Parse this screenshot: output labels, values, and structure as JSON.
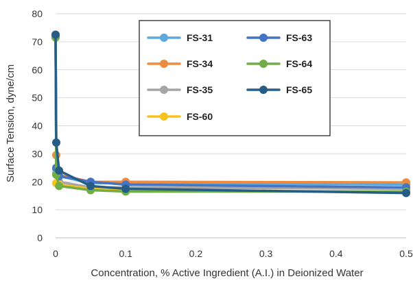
{
  "chart_data": {
    "type": "line",
    "title": "",
    "xlabel": "Concentration, % Active Ingredient (A.I.) in Deionized Water",
    "ylabel": "Surface Tension, dyne/cm",
    "xlim": [
      0,
      0.5
    ],
    "ylim": [
      0,
      80
    ],
    "x_ticks": [
      0,
      0.1,
      0.2,
      0.3,
      0.4,
      0.5
    ],
    "x_tick_labels": [
      "0",
      "0.1",
      "0.2",
      "0.3",
      "0.4",
      "0.5"
    ],
    "y_ticks": [
      0,
      10,
      20,
      30,
      40,
      50,
      60,
      70,
      80
    ],
    "y_tick_labels": [
      "0",
      "10",
      "20",
      "30",
      "40",
      "50",
      "60",
      "70",
      "80"
    ],
    "grid": "horizontal",
    "legend_position": "top-right",
    "series": [
      {
        "name": "FS-31",
        "color": "#5fa8dc",
        "points": [
          [
            0,
            72
          ],
          [
            0.001,
            24.5
          ],
          [
            0.005,
            22
          ],
          [
            0.05,
            19.5
          ],
          [
            0.1,
            19.5
          ],
          [
            0.5,
            19
          ]
        ]
      },
      {
        "name": "FS-34",
        "color": "#ed8b3f",
        "points": [
          [
            0,
            72
          ],
          [
            0.001,
            29.5
          ],
          [
            0.005,
            22.5
          ],
          [
            0.05,
            20
          ],
          [
            0.1,
            20
          ],
          [
            0.5,
            19.8
          ]
        ]
      },
      {
        "name": "FS-35",
        "color": "#a5a5a5",
        "points": [
          [
            0,
            72.5
          ],
          [
            0.001,
            23
          ],
          [
            0.005,
            20
          ],
          [
            0.05,
            18
          ],
          [
            0.1,
            18
          ],
          [
            0.5,
            17.5
          ]
        ]
      },
      {
        "name": "FS-60",
        "color": "#f7c11e",
        "points": [
          [
            0,
            72
          ],
          [
            0.001,
            19.5
          ],
          [
            0.005,
            19
          ],
          [
            0.05,
            17.5
          ],
          [
            0.1,
            17
          ],
          [
            0.5,
            16.5
          ]
        ]
      },
      {
        "name": "FS-63",
        "color": "#4574c4",
        "points": [
          [
            0,
            72
          ],
          [
            0.001,
            25
          ],
          [
            0.005,
            22
          ],
          [
            0.05,
            20
          ],
          [
            0.1,
            19
          ],
          [
            0.5,
            18
          ]
        ]
      },
      {
        "name": "FS-64",
        "color": "#70ad47",
        "points": [
          [
            0,
            71.5
          ],
          [
            0.001,
            22.5
          ],
          [
            0.005,
            18.5
          ],
          [
            0.05,
            17
          ],
          [
            0.1,
            16.5
          ],
          [
            0.5,
            16.5
          ]
        ]
      },
      {
        "name": "FS-65",
        "color": "#265d87",
        "points": [
          [
            0,
            72.5
          ],
          [
            0.001,
            34
          ],
          [
            0.005,
            24
          ],
          [
            0.05,
            18.5
          ],
          [
            0.1,
            17.5
          ],
          [
            0.5,
            16
          ]
        ]
      }
    ]
  }
}
